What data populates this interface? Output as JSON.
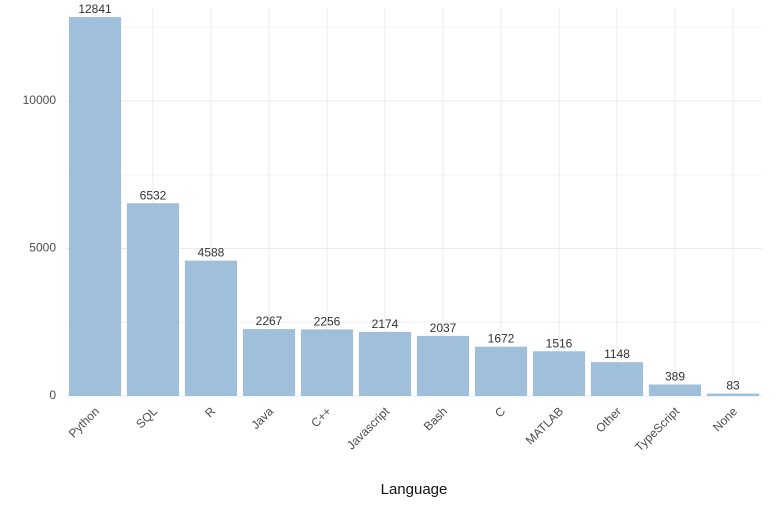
{
  "chart_data": {
    "type": "bar",
    "xlabel": "Language",
    "ylabel": "",
    "categories": [
      "Python",
      "SQL",
      "R",
      "Java",
      "C++",
      "Javascript",
      "Bash",
      "C",
      "MATLAB",
      "Other",
      "TypeScript",
      "None"
    ],
    "values": [
      12841,
      6532,
      4588,
      2267,
      2256,
      2174,
      2037,
      1672,
      1516,
      1148,
      389,
      83
    ],
    "y_ticks": [
      "0",
      "5000",
      "10000"
    ],
    "ylim": [
      0,
      13150
    ],
    "grid": true,
    "bar_color": "#9fbfdb"
  }
}
